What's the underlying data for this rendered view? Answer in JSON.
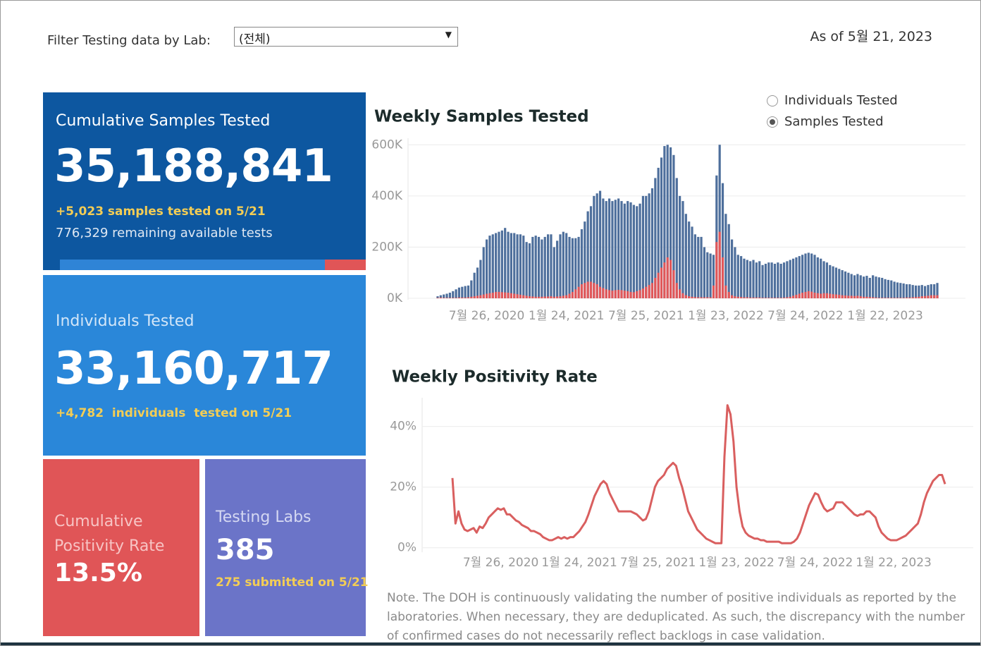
{
  "filter": {
    "label": "Filter Testing data by Lab:",
    "selected": "(전체)"
  },
  "as_of": "As of 5월 21, 2023",
  "tiles": {
    "samples": {
      "title": "Cumulative Samples Tested",
      "total": "35,188,841",
      "change": "+5,023 samples tested on 5/21",
      "remaining": "776,329 remaining available tests"
    },
    "individuals": {
      "title": "Individuals Tested",
      "total": "33,160,717",
      "change": "+4,782  individuals  tested on 5/21"
    },
    "positivity": {
      "title": "Cumulative Positivity Rate",
      "value": "13.5%"
    },
    "labs": {
      "title": "Testing Labs",
      "value": "385",
      "submitted": "275 submitted on 5/21"
    }
  },
  "toggle": {
    "options": [
      "Individuals Tested",
      "Samples Tested"
    ],
    "selected": 1
  },
  "note": "Note. The DOH is continuously validating the number of positive individuals as reported by the laboratories. When necessary, they are deduplicated. As such, the discrepancy with the number of confirmed cases do not necessarily reflect backlogs in case validation.",
  "chart_data": [
    {
      "type": "bar",
      "title": "Weekly Samples Tested",
      "grid": true,
      "x": [
        "2020-04-05",
        "2020-04-12",
        "2020-04-19",
        "2020-04-26",
        "2020-05-03",
        "2020-05-10",
        "2020-05-17",
        "2020-05-24",
        "2020-05-31",
        "2020-06-07",
        "2020-06-14",
        "2020-06-21",
        "2020-06-28",
        "2020-07-05",
        "2020-07-12",
        "2020-07-19",
        "2020-07-26",
        "2020-08-02",
        "2020-08-09",
        "2020-08-16",
        "2020-08-23",
        "2020-08-30",
        "2020-09-06",
        "2020-09-13",
        "2020-09-20",
        "2020-09-27",
        "2020-10-04",
        "2020-10-11",
        "2020-10-18",
        "2020-10-25",
        "2020-11-01",
        "2020-11-08",
        "2020-11-15",
        "2020-11-22",
        "2020-11-29",
        "2020-12-06",
        "2020-12-13",
        "2020-12-20",
        "2020-12-27",
        "2021-01-03",
        "2021-01-10",
        "2021-01-17",
        "2021-01-24",
        "2021-01-31",
        "2021-02-07",
        "2021-02-14",
        "2021-02-21",
        "2021-02-28",
        "2021-03-07",
        "2021-03-14",
        "2021-03-21",
        "2021-03-28",
        "2021-04-04",
        "2021-04-11",
        "2021-04-18",
        "2021-04-25",
        "2021-05-02",
        "2021-05-09",
        "2021-05-16",
        "2021-05-23",
        "2021-05-30",
        "2021-06-06",
        "2021-06-13",
        "2021-06-20",
        "2021-06-27",
        "2021-07-04",
        "2021-07-11",
        "2021-07-18",
        "2021-07-25",
        "2021-08-01",
        "2021-08-08",
        "2021-08-15",
        "2021-08-22",
        "2021-08-29",
        "2021-09-05",
        "2021-09-12",
        "2021-09-19",
        "2021-09-26",
        "2021-10-03",
        "2021-10-10",
        "2021-10-17",
        "2021-10-24",
        "2021-10-31",
        "2021-11-07",
        "2021-11-14",
        "2021-11-21",
        "2021-11-28",
        "2021-12-05",
        "2021-12-12",
        "2021-12-19",
        "2021-12-26",
        "2022-01-02",
        "2022-01-09",
        "2022-01-16",
        "2022-01-23",
        "2022-01-30",
        "2022-02-06",
        "2022-02-13",
        "2022-02-20",
        "2022-02-27",
        "2022-03-06",
        "2022-03-13",
        "2022-03-20",
        "2022-03-27",
        "2022-04-03",
        "2022-04-10",
        "2022-04-17",
        "2022-04-24",
        "2022-05-01",
        "2022-05-08",
        "2022-05-15",
        "2022-05-22",
        "2022-05-29",
        "2022-06-05",
        "2022-06-12",
        "2022-06-19",
        "2022-06-26",
        "2022-07-03",
        "2022-07-10",
        "2022-07-17",
        "2022-07-24",
        "2022-07-31",
        "2022-08-07",
        "2022-08-14",
        "2022-08-21",
        "2022-08-28",
        "2022-09-04",
        "2022-09-11",
        "2022-09-18",
        "2022-09-25",
        "2022-10-02",
        "2022-10-09",
        "2022-10-16",
        "2022-10-23",
        "2022-10-30",
        "2022-11-06",
        "2022-11-13",
        "2022-11-20",
        "2022-11-27",
        "2022-12-04",
        "2022-12-11",
        "2022-12-18",
        "2022-12-25",
        "2023-01-01",
        "2023-01-08",
        "2023-01-15",
        "2023-01-22",
        "2023-01-29",
        "2023-02-05",
        "2023-02-12",
        "2023-02-19",
        "2023-02-26",
        "2023-03-05",
        "2023-03-12",
        "2023-03-19",
        "2023-03-26",
        "2023-04-02",
        "2023-04-09",
        "2023-04-16",
        "2023-04-23",
        "2023-04-30",
        "2023-05-07",
        "2023-05-14",
        "2023-05-21"
      ],
      "series": [
        {
          "color": "#4e6f9c",
          "values": [
            8000,
            12000,
            15000,
            18000,
            22000,
            28000,
            35000,
            42000,
            45000,
            48000,
            50000,
            70000,
            100000,
            120000,
            150000,
            200000,
            230000,
            245000,
            250000,
            255000,
            260000,
            265000,
            275000,
            260000,
            255000,
            255000,
            250000,
            250000,
            245000,
            220000,
            215000,
            240000,
            245000,
            240000,
            230000,
            240000,
            250000,
            250000,
            200000,
            225000,
            250000,
            260000,
            255000,
            240000,
            235000,
            235000,
            240000,
            270000,
            300000,
            340000,
            360000,
            400000,
            410000,
            420000,
            390000,
            380000,
            390000,
            380000,
            385000,
            390000,
            380000,
            370000,
            380000,
            375000,
            365000,
            360000,
            370000,
            400000,
            400000,
            410000,
            430000,
            470000,
            510000,
            550000,
            595000,
            600000,
            590000,
            560000,
            470000,
            400000,
            380000,
            330000,
            300000,
            280000,
            250000,
            240000,
            240000,
            200000,
            180000,
            175000,
            170000,
            480000,
            600000,
            450000,
            330000,
            290000,
            230000,
            200000,
            170000,
            165000,
            155000,
            150000,
            145000,
            150000,
            140000,
            145000,
            130000,
            135000,
            140000,
            140000,
            135000,
            140000,
            135000,
            140000,
            145000,
            150000,
            155000,
            160000,
            165000,
            170000,
            175000,
            178000,
            175000,
            170000,
            160000,
            155000,
            145000,
            140000,
            130000,
            125000,
            120000,
            115000,
            110000,
            105000,
            100000,
            95000,
            90000,
            95000,
            90000,
            85000,
            88000,
            80000,
            90000,
            85000,
            82000,
            80000,
            75000,
            72000,
            70000,
            65000,
            62000,
            60000,
            58000,
            55000,
            55000,
            52000,
            50000,
            50000,
            52000,
            48000,
            52000,
            55000,
            55000,
            60000
          ]
        },
        {
          "color": "#e15759",
          "values": [
            2000,
            3000,
            2000,
            2000,
            2000,
            2000,
            2000,
            3000,
            3000,
            3000,
            4000,
            6000,
            8000,
            10000,
            12000,
            15000,
            18000,
            20000,
            22000,
            25000,
            25000,
            24000,
            23000,
            22000,
            20000,
            18000,
            16000,
            14000,
            12000,
            10000,
            8000,
            7000,
            6000,
            6000,
            6000,
            7000,
            7000,
            8000,
            6000,
            7000,
            8000,
            10000,
            12000,
            18000,
            25000,
            35000,
            45000,
            55000,
            60000,
            65000,
            65000,
            60000,
            55000,
            45000,
            40000,
            35000,
            32000,
            30000,
            32000,
            33000,
            32000,
            30000,
            28000,
            25000,
            24000,
            28000,
            32000,
            38000,
            45000,
            52000,
            60000,
            80000,
            100000,
            120000,
            140000,
            160000,
            150000,
            110000,
            60000,
            35000,
            20000,
            12000,
            8000,
            6000,
            5000,
            4000,
            4000,
            4000,
            4000,
            4000,
            50000,
            220000,
            260000,
            160000,
            50000,
            25000,
            12000,
            8000,
            6000,
            5000,
            4000,
            4000,
            3000,
            3000,
            3000,
            3000,
            2000,
            2000,
            2000,
            2000,
            2000,
            2000,
            2000,
            3000,
            4000,
            6000,
            10000,
            14000,
            18000,
            22000,
            25000,
            28000,
            26000,
            22000,
            20000,
            18000,
            20000,
            20000,
            18000,
            16000,
            15000,
            14000,
            12000,
            11000,
            10000,
            10000,
            9000,
            10000,
            8000,
            6000,
            6000,
            5000,
            4000,
            3000,
            2000,
            2000,
            2000,
            2000,
            2000,
            2000,
            2000,
            2000,
            2000,
            3000,
            3000,
            4000,
            5000,
            6000,
            8000,
            9000,
            10000,
            12000,
            12000,
            12000
          ]
        }
      ],
      "xlim": [
        "2020-04-05",
        "2023-05-21"
      ],
      "xticks": [
        {
          "value": "2020-07-26",
          "label": "7월 26, 2020"
        },
        {
          "value": "2021-01-24",
          "label": "1월 24, 2021"
        },
        {
          "value": "2021-07-25",
          "label": "7월 25, 2021"
        },
        {
          "value": "2022-01-23",
          "label": "1월 23, 2022"
        },
        {
          "value": "2022-07-24",
          "label": "7월 24, 2022"
        },
        {
          "value": "2023-01-22",
          "label": "1월 22, 2023"
        }
      ],
      "ylim": [
        0,
        620000
      ],
      "yticks": [
        {
          "value": 0,
          "label": "0K"
        },
        {
          "value": 200000,
          "label": "200K"
        },
        {
          "value": 400000,
          "label": "400K"
        },
        {
          "value": 600000,
          "label": "600K"
        }
      ]
    },
    {
      "type": "line",
      "title": "Weekly Positivity Rate",
      "grid": true,
      "x": [
        "2020-04-05",
        "2020-04-12",
        "2020-04-19",
        "2020-04-26",
        "2020-05-03",
        "2020-05-10",
        "2020-05-17",
        "2020-05-24",
        "2020-05-31",
        "2020-06-07",
        "2020-06-14",
        "2020-06-21",
        "2020-06-28",
        "2020-07-05",
        "2020-07-12",
        "2020-07-19",
        "2020-07-26",
        "2020-08-02",
        "2020-08-09",
        "2020-08-16",
        "2020-08-23",
        "2020-08-30",
        "2020-09-06",
        "2020-09-13",
        "2020-09-20",
        "2020-09-27",
        "2020-10-04",
        "2020-10-11",
        "2020-10-18",
        "2020-10-25",
        "2020-11-01",
        "2020-11-08",
        "2020-11-15",
        "2020-11-22",
        "2020-11-29",
        "2020-12-06",
        "2020-12-13",
        "2020-12-20",
        "2020-12-27",
        "2021-01-03",
        "2021-01-10",
        "2021-01-17",
        "2021-01-24",
        "2021-01-31",
        "2021-02-07",
        "2021-02-14",
        "2021-02-21",
        "2021-02-28",
        "2021-03-07",
        "2021-03-14",
        "2021-03-21",
        "2021-03-28",
        "2021-04-04",
        "2021-04-11",
        "2021-04-18",
        "2021-04-25",
        "2021-05-02",
        "2021-05-09",
        "2021-05-16",
        "2021-05-23",
        "2021-05-30",
        "2021-06-06",
        "2021-06-13",
        "2021-06-20",
        "2021-06-27",
        "2021-07-04",
        "2021-07-11",
        "2021-07-18",
        "2021-07-25",
        "2021-08-01",
        "2021-08-08",
        "2021-08-15",
        "2021-08-22",
        "2021-08-29",
        "2021-09-05",
        "2021-09-12",
        "2021-09-19",
        "2021-09-26",
        "2021-10-03",
        "2021-10-10",
        "2021-10-17",
        "2021-10-24",
        "2021-10-31",
        "2021-11-07",
        "2021-11-14",
        "2021-11-21",
        "2021-11-28",
        "2021-12-05",
        "2021-12-12",
        "2021-12-19",
        "2021-12-26",
        "2022-01-02",
        "2022-01-09",
        "2022-01-16",
        "2022-01-23",
        "2022-01-30",
        "2022-02-06",
        "2022-02-13",
        "2022-02-20",
        "2022-02-27",
        "2022-03-06",
        "2022-03-13",
        "2022-03-20",
        "2022-03-27",
        "2022-04-03",
        "2022-04-10",
        "2022-04-17",
        "2022-04-24",
        "2022-05-01",
        "2022-05-08",
        "2022-05-15",
        "2022-05-22",
        "2022-05-29",
        "2022-06-05",
        "2022-06-12",
        "2022-06-19",
        "2022-06-26",
        "2022-07-03",
        "2022-07-10",
        "2022-07-17",
        "2022-07-24",
        "2022-07-31",
        "2022-08-07",
        "2022-08-14",
        "2022-08-21",
        "2022-08-28",
        "2022-09-04",
        "2022-09-11",
        "2022-09-18",
        "2022-09-25",
        "2022-10-02",
        "2022-10-09",
        "2022-10-16",
        "2022-10-23",
        "2022-10-30",
        "2022-11-06",
        "2022-11-13",
        "2022-11-20",
        "2022-11-27",
        "2022-12-04",
        "2022-12-11",
        "2022-12-18",
        "2022-12-25",
        "2023-01-01",
        "2023-01-08",
        "2023-01-15",
        "2023-01-22",
        "2023-01-29",
        "2023-02-05",
        "2023-02-12",
        "2023-02-19",
        "2023-02-26",
        "2023-03-05",
        "2023-03-12",
        "2023-03-19",
        "2023-03-26",
        "2023-04-02",
        "2023-04-09",
        "2023-04-16",
        "2023-04-23",
        "2023-04-30",
        "2023-05-07",
        "2023-05-14",
        "2023-05-21"
      ],
      "series": [
        {
          "color": "#d95f5f",
          "values": [
            23,
            8,
            12,
            8,
            6,
            5.5,
            6,
            6.5,
            5,
            7,
            6.5,
            8,
            10,
            11,
            12,
            13,
            12.5,
            13,
            11,
            11,
            10,
            9,
            8.5,
            7.5,
            7,
            6.5,
            5.5,
            5.5,
            5,
            4.5,
            3.5,
            3,
            2.5,
            2.5,
            3,
            3.5,
            3,
            3.5,
            3,
            3.5,
            3.5,
            4.5,
            5.5,
            7,
            8.5,
            11,
            14,
            17,
            19,
            21,
            22,
            21,
            18,
            16,
            14,
            12,
            12,
            12,
            12,
            12,
            11.5,
            11,
            10,
            9,
            9.5,
            12,
            16,
            20,
            22,
            23,
            24,
            26,
            27,
            28,
            27,
            23,
            20,
            16,
            12,
            10,
            8,
            6,
            5,
            4,
            3,
            2.5,
            2,
            1.5,
            1.5,
            1.5,
            30,
            47,
            44,
            35,
            20,
            12,
            7,
            5,
            4,
            3.5,
            3,
            3,
            2.5,
            2.5,
            2,
            2,
            2,
            2,
            2,
            1.5,
            1.5,
            1.5,
            1.5,
            2,
            3,
            5,
            8,
            11,
            14,
            16,
            18,
            17.5,
            15,
            13,
            12,
            12.5,
            13,
            15,
            15,
            15,
            14,
            13,
            12,
            11,
            10.5,
            11,
            11,
            12,
            12,
            11,
            10,
            7,
            5,
            4,
            3,
            2.5,
            2.5,
            2.5,
            3,
            3.5,
            4,
            5,
            6,
            7,
            8,
            11,
            15,
            18,
            20,
            22,
            23,
            24,
            24,
            21
          ]
        }
      ],
      "xlim": [
        "2020-04-05",
        "2023-05-21"
      ],
      "xticks": [
        {
          "value": "2020-07-26",
          "label": "7월 26, 2020"
        },
        {
          "value": "2021-01-24",
          "label": "1월 24, 2021"
        },
        {
          "value": "2021-07-25",
          "label": "7월 25, 2021"
        },
        {
          "value": "2022-01-23",
          "label": "1월 23, 2022"
        },
        {
          "value": "2022-07-24",
          "label": "7월 24, 2022"
        },
        {
          "value": "2023-01-22",
          "label": "1월 22, 2023"
        }
      ],
      "ylim": [
        -1,
        49
      ],
      "yticks": [
        {
          "value": 0,
          "label": "0%"
        },
        {
          "value": 20,
          "label": "20%"
        },
        {
          "value": 40,
          "label": "40%"
        }
      ]
    }
  ]
}
